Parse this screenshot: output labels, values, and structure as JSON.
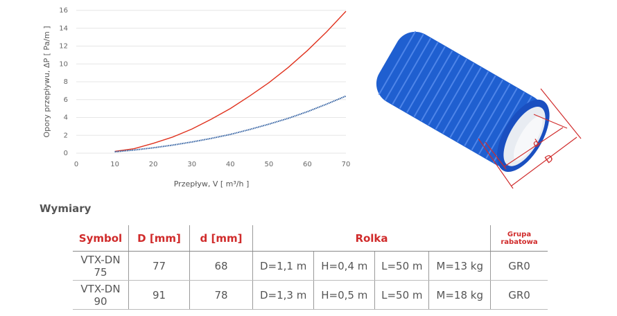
{
  "chart_data": {
    "type": "line",
    "x_label": "Przepływ, V [ m³/h ]",
    "y_label": "Opory przepływu, ΔP [ Pa/m ]",
    "x": [
      10,
      15,
      20,
      25,
      30,
      35,
      40,
      45,
      50,
      55,
      60,
      65,
      70
    ],
    "series": [
      {
        "color": "#e0321e",
        "style": "solid",
        "values": [
          0.2,
          0.5,
          1.1,
          1.8,
          2.7,
          3.8,
          5.0,
          6.4,
          7.9,
          9.6,
          11.5,
          13.6,
          15.9
        ]
      },
      {
        "color": "#2a5a9e",
        "style": "dotted",
        "values": [
          0.15,
          0.35,
          0.6,
          0.9,
          1.25,
          1.65,
          2.1,
          2.65,
          3.25,
          3.9,
          4.65,
          5.5,
          6.4
        ]
      }
    ],
    "xlim": [
      0,
      70
    ],
    "xticks": [
      0,
      10,
      20,
      30,
      40,
      50,
      60,
      70
    ],
    "ylim": [
      0,
      16
    ],
    "yticks": [
      0,
      2,
      4,
      6,
      8,
      10,
      12,
      14,
      16
    ],
    "grid": true
  },
  "pipe": {
    "d_label": "d",
    "D_label": "D"
  },
  "heading": "Wymiary",
  "table": {
    "header": [
      "Symbol",
      "D [mm]",
      "d [mm]",
      "Rolka",
      "Grupa rabatowa"
    ],
    "rows": [
      [
        "VTX-DN 75",
        77,
        68,
        "D=1,1 m",
        "H=0,4 m",
        "L=50 m",
        "M=13 kg",
        "GR0"
      ],
      [
        "VTX-DN 90",
        91,
        78,
        "D=1,3 m",
        "H=0,5 m",
        "L=50 m",
        "M=18 kg",
        "GR0"
      ]
    ]
  }
}
